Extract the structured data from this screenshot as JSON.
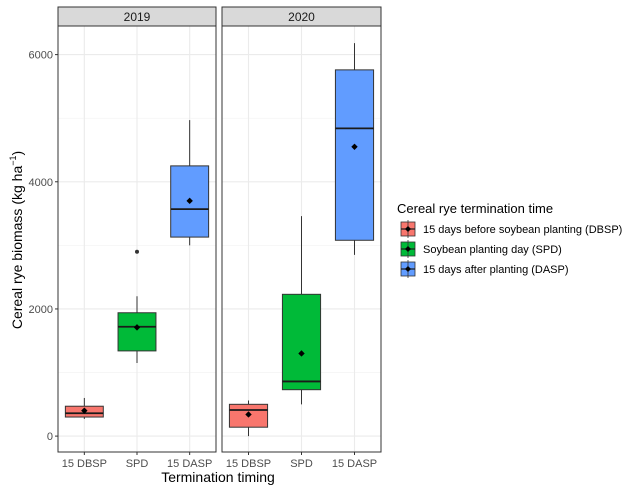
{
  "chart_data": {
    "type": "boxplot",
    "xlabel": "Termination timing",
    "ylabel": "Cereal rye biomass (kg ha",
    "ylabel_superscript": "−1",
    "ylabel_suffix": ")",
    "ylim": [
      -250,
      6450
    ],
    "yticks": [
      0,
      2000,
      4000,
      6000
    ],
    "categories": [
      "15 DBSP",
      "SPD",
      "15 DASP"
    ],
    "legend": {
      "title": "Cereal rye termination time",
      "position": "right",
      "entries": [
        {
          "label": "15 days before soybean planting (DBSP)",
          "color": "#F8766D"
        },
        {
          "label": "Soybean planting day (SPD)",
          "color": "#00BA38"
        },
        {
          "label": "15 days after planting (DASP)",
          "color": "#619CFF"
        }
      ]
    },
    "grid": true,
    "facets": [
      {
        "label": "2019",
        "boxes": [
          {
            "category": "15 DBSP",
            "min": 270,
            "q1": 300,
            "median": 360,
            "q3": 470,
            "max": 600,
            "mean": 400,
            "outliers": []
          },
          {
            "category": "SPD",
            "min": 1150,
            "q1": 1340,
            "median": 1720,
            "q3": 1940,
            "max": 2200,
            "mean": 1710,
            "outliers": [
              2900
            ]
          },
          {
            "category": "15 DASP",
            "min": 3000,
            "q1": 3130,
            "median": 3570,
            "q3": 4250,
            "max": 4970,
            "mean": 3700,
            "outliers": []
          }
        ]
      },
      {
        "label": "2020",
        "boxes": [
          {
            "category": "15 DBSP",
            "min": 0,
            "q1": 140,
            "median": 410,
            "q3": 500,
            "max": 560,
            "mean": 340,
            "outliers": []
          },
          {
            "category": "SPD",
            "min": 500,
            "q1": 730,
            "median": 860,
            "q3": 2230,
            "max": 3460,
            "mean": 1300,
            "outliers": []
          },
          {
            "category": "15 DASP",
            "min": 2850,
            "q1": 3080,
            "median": 4840,
            "q3": 5760,
            "max": 6180,
            "mean": 4550,
            "outliers": []
          }
        ]
      }
    ]
  }
}
